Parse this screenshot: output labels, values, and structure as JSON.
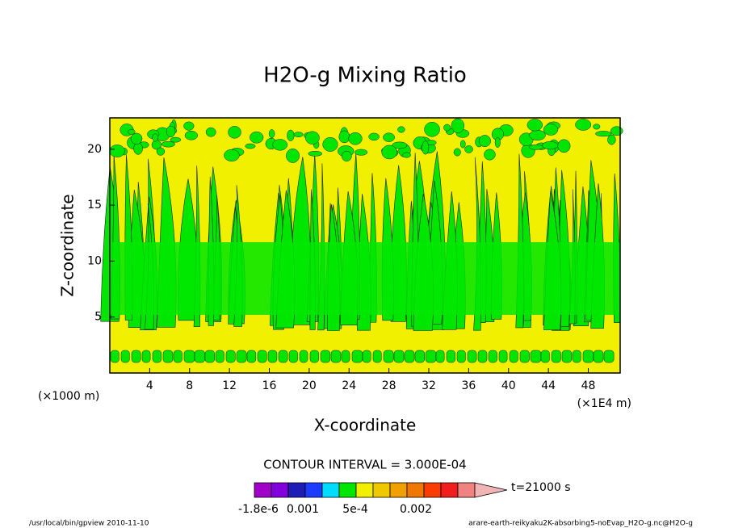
{
  "chart_data": {
    "type": "contour",
    "title": "H2O-g Mixing Ratio",
    "x_label": "X-coordinate",
    "y_label": "Z-coordinate",
    "x_unit": "(×1E4 m)",
    "y_unit": "(×1000 m)",
    "xlim": [
      0,
      51.2
    ],
    "xticks": [
      4,
      8,
      12,
      16,
      20,
      24,
      28,
      32,
      36,
      40,
      44,
      48
    ],
    "ylim": [
      0,
      22.8
    ],
    "yticks": [
      5,
      10,
      15,
      20
    ],
    "contour_interval": "CONTOUR INTERVAL = 3.000E-04",
    "time": "t=21000 s",
    "colorbar_colors": [
      "#a000c8",
      "#8200dc",
      "#1e1eb4",
      "#1e3cff",
      "#00dcff",
      "#00e600",
      "#f0f000",
      "#f0c800",
      "#f0a000",
      "#f07800",
      "#fa3c00",
      "#f01e1e",
      "#f08282",
      "#f0b4b4"
    ],
    "colorbar_labels": [
      "-1.8e-6",
      "0.001",
      "5e-4",
      "0.002"
    ],
    "footer_left": "/usr/local/bin/gpview  2010-11-10",
    "footer_right": "arare-earth-reikyaku2K-absorbing5-noEvap_H2O-g.nc@H2O-g"
  }
}
